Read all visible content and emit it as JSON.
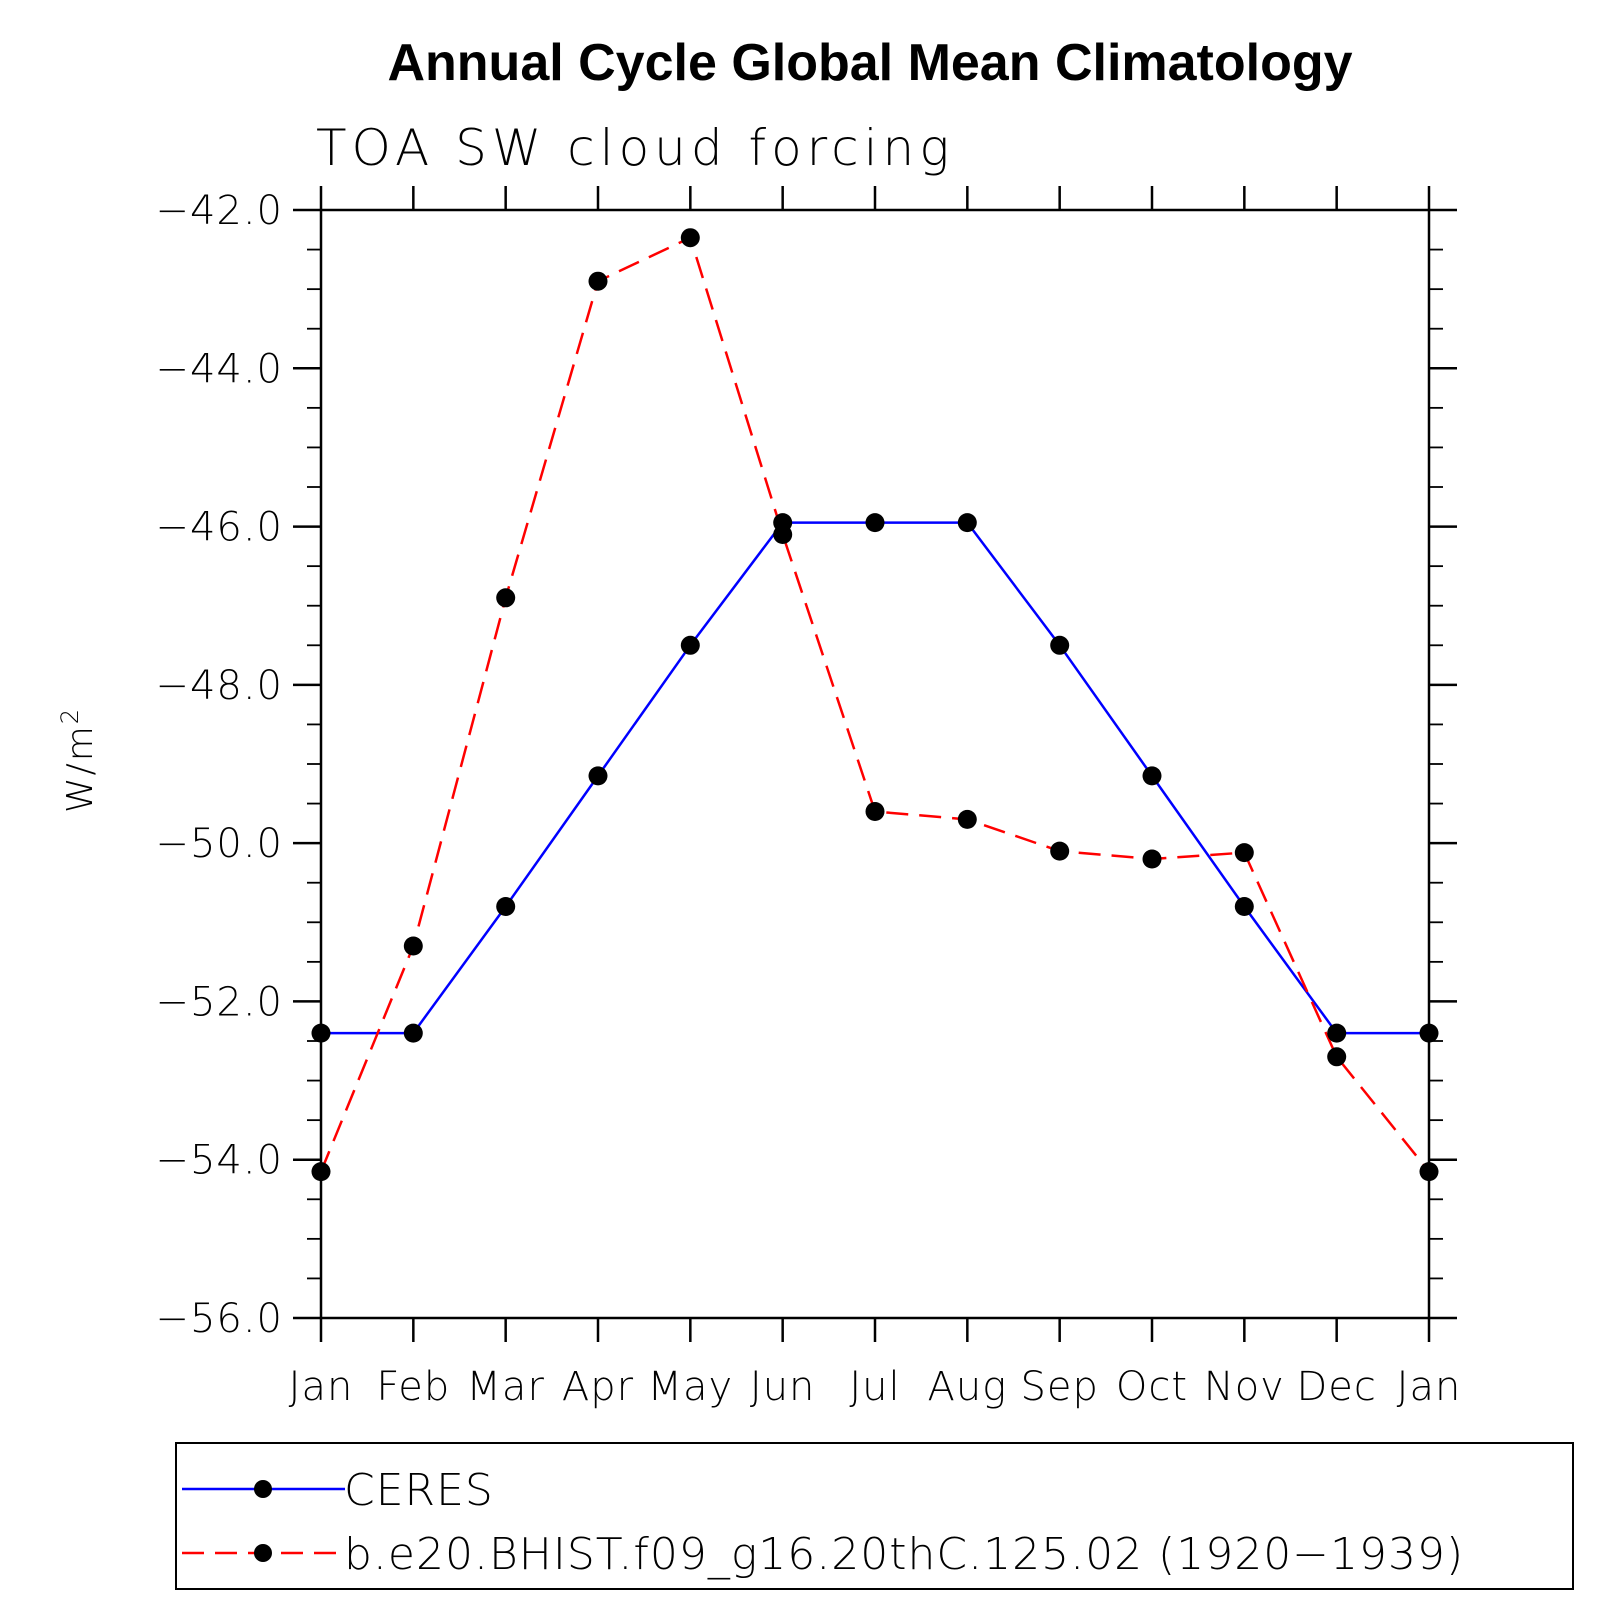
{
  "chart_data": {
    "type": "line",
    "title": "Annual Cycle Global Mean Climatology",
    "subtitle": "TOA SW cloud forcing",
    "ylabel": "W/m",
    "ylabel_sup": "2",
    "xlabel": "",
    "categories": [
      "Jan",
      "Feb",
      "Mar",
      "Apr",
      "May",
      "Jun",
      "Jul",
      "Aug",
      "Sep",
      "Oct",
      "Nov",
      "Dec",
      "Jan"
    ],
    "ylim": [
      -56.0,
      -42.0
    ],
    "yticks": [
      -42.0,
      -44.0,
      -46.0,
      -48.0,
      -50.0,
      -52.0,
      -54.0,
      -56.0
    ],
    "ytick_labels": [
      "−42.0",
      "−44.0",
      "−46.0",
      "−48.0",
      "−50.0",
      "−52.0",
      "−54.0",
      "−56.0"
    ],
    "series": [
      {
        "name": "CERES",
        "color": "#0000ff",
        "dash": "solid",
        "marker": "filled-circle",
        "values": [
          -52.4,
          -52.4,
          -50.8,
          -49.15,
          -47.5,
          -45.95,
          -45.95,
          -45.95,
          -47.5,
          -49.15,
          -50.8,
          -52.4,
          -52.4
        ]
      },
      {
        "name": "b.e20.BHIST.f09_g16.20thC.125.02 (1920−1939)",
        "color": "#ff0000",
        "dash": "dashed",
        "marker": "filled-circle",
        "values": [
          -54.15,
          -51.3,
          -46.9,
          -42.9,
          -42.35,
          -46.1,
          -49.6,
          -49.7,
          -50.1,
          -50.2,
          -50.12,
          -52.7,
          -54.15
        ]
      }
    ],
    "legend_position": "bottom",
    "grid": false
  }
}
